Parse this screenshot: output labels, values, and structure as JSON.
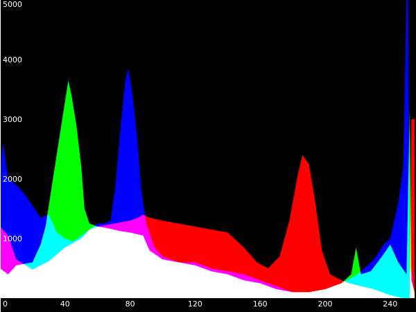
{
  "chart_data": {
    "type": "area",
    "title": "",
    "xlabel": "",
    "ylabel": "",
    "xlim": [
      0,
      255
    ],
    "ylim": [
      0,
      5000
    ],
    "grid": false,
    "legend": "none",
    "x_tick_labels": [
      "0",
      "40",
      "80",
      "120",
      "160",
      "200",
      "240"
    ],
    "y_tick_labels": [
      "1000",
      "2000",
      "3000",
      "4000",
      "5000"
    ],
    "blend": "additive",
    "series": [
      {
        "color": "#ff0000",
        "points": [
          [
            0,
            1200
          ],
          [
            5,
            1050
          ],
          [
            10,
            650
          ],
          [
            20,
            480
          ],
          [
            30,
            620
          ],
          [
            40,
            850
          ],
          [
            50,
            1000
          ],
          [
            55,
            1150
          ],
          [
            60,
            1200
          ],
          [
            70,
            1250
          ],
          [
            80,
            1300
          ],
          [
            85,
            1350
          ],
          [
            88,
            1400
          ],
          [
            92,
            1350
          ],
          [
            100,
            1300
          ],
          [
            110,
            1250
          ],
          [
            120,
            1200
          ],
          [
            130,
            1150
          ],
          [
            140,
            1100
          ],
          [
            150,
            850
          ],
          [
            158,
            600
          ],
          [
            165,
            500
          ],
          [
            172,
            700
          ],
          [
            178,
            1300
          ],
          [
            183,
            2050
          ],
          [
            186,
            2400
          ],
          [
            190,
            2250
          ],
          [
            194,
            1600
          ],
          [
            198,
            800
          ],
          [
            203,
            400
          ],
          [
            210,
            300
          ],
          [
            215,
            250
          ],
          [
            222,
            200
          ],
          [
            230,
            150
          ],
          [
            240,
            50
          ],
          [
            248,
            0
          ],
          [
            252,
            0
          ],
          [
            253,
            3000
          ],
          [
            255,
            3000
          ]
        ]
      },
      {
        "color": "#00ff00",
        "points": [
          [
            0,
            500
          ],
          [
            5,
            400
          ],
          [
            10,
            550
          ],
          [
            20,
            600
          ],
          [
            25,
            900
          ],
          [
            28,
            1200
          ],
          [
            32,
            1900
          ],
          [
            36,
            2600
          ],
          [
            40,
            3300
          ],
          [
            42,
            3650
          ],
          [
            44,
            3400
          ],
          [
            47,
            2900
          ],
          [
            50,
            2200
          ],
          [
            52,
            1500
          ],
          [
            55,
            1250
          ],
          [
            60,
            1200
          ],
          [
            65,
            1180
          ],
          [
            70,
            1150
          ],
          [
            75,
            1120
          ],
          [
            80,
            1100
          ],
          [
            88,
            1050
          ],
          [
            92,
            800
          ],
          [
            100,
            650
          ],
          [
            110,
            600
          ],
          [
            120,
            550
          ],
          [
            130,
            450
          ],
          [
            140,
            400
          ],
          [
            150,
            300
          ],
          [
            160,
            250
          ],
          [
            170,
            150
          ],
          [
            180,
            100
          ],
          [
            190,
            100
          ],
          [
            200,
            150
          ],
          [
            210,
            250
          ],
          [
            216,
            400
          ],
          [
            219,
            850
          ],
          [
            222,
            400
          ],
          [
            228,
            450
          ],
          [
            235,
            700
          ],
          [
            240,
            900
          ],
          [
            245,
            600
          ],
          [
            250,
            400
          ],
          [
            252,
            3200
          ],
          [
            253,
            300
          ],
          [
            255,
            100
          ]
        ]
      },
      {
        "color": "#0000ff",
        "points": [
          [
            0,
            2200
          ],
          [
            2,
            2600
          ],
          [
            5,
            2000
          ],
          [
            10,
            1900
          ],
          [
            15,
            1750
          ],
          [
            20,
            1550
          ],
          [
            25,
            1350
          ],
          [
            30,
            1400
          ],
          [
            35,
            1100
          ],
          [
            40,
            1000
          ],
          [
            45,
            950
          ],
          [
            50,
            1050
          ],
          [
            55,
            1150
          ],
          [
            60,
            1250
          ],
          [
            64,
            1250
          ],
          [
            68,
            1300
          ],
          [
            71,
            1900
          ],
          [
            74,
            2800
          ],
          [
            77,
            3650
          ],
          [
            79,
            3850
          ],
          [
            81,
            3500
          ],
          [
            84,
            2800
          ],
          [
            87,
            1800
          ],
          [
            90,
            1250
          ],
          [
            95,
            850
          ],
          [
            100,
            700
          ],
          [
            110,
            600
          ],
          [
            120,
            600
          ],
          [
            130,
            500
          ],
          [
            140,
            450
          ],
          [
            150,
            400
          ],
          [
            160,
            300
          ],
          [
            170,
            200
          ],
          [
            180,
            100
          ],
          [
            190,
            100
          ],
          [
            200,
            150
          ],
          [
            210,
            250
          ],
          [
            220,
            400
          ],
          [
            230,
            650
          ],
          [
            236,
            900
          ],
          [
            240,
            1000
          ],
          [
            245,
            1600
          ],
          [
            248,
            2200
          ],
          [
            250,
            5000
          ],
          [
            251,
            5000
          ],
          [
            252,
            400
          ],
          [
            253,
            500
          ],
          [
            255,
            0
          ]
        ]
      }
    ]
  }
}
